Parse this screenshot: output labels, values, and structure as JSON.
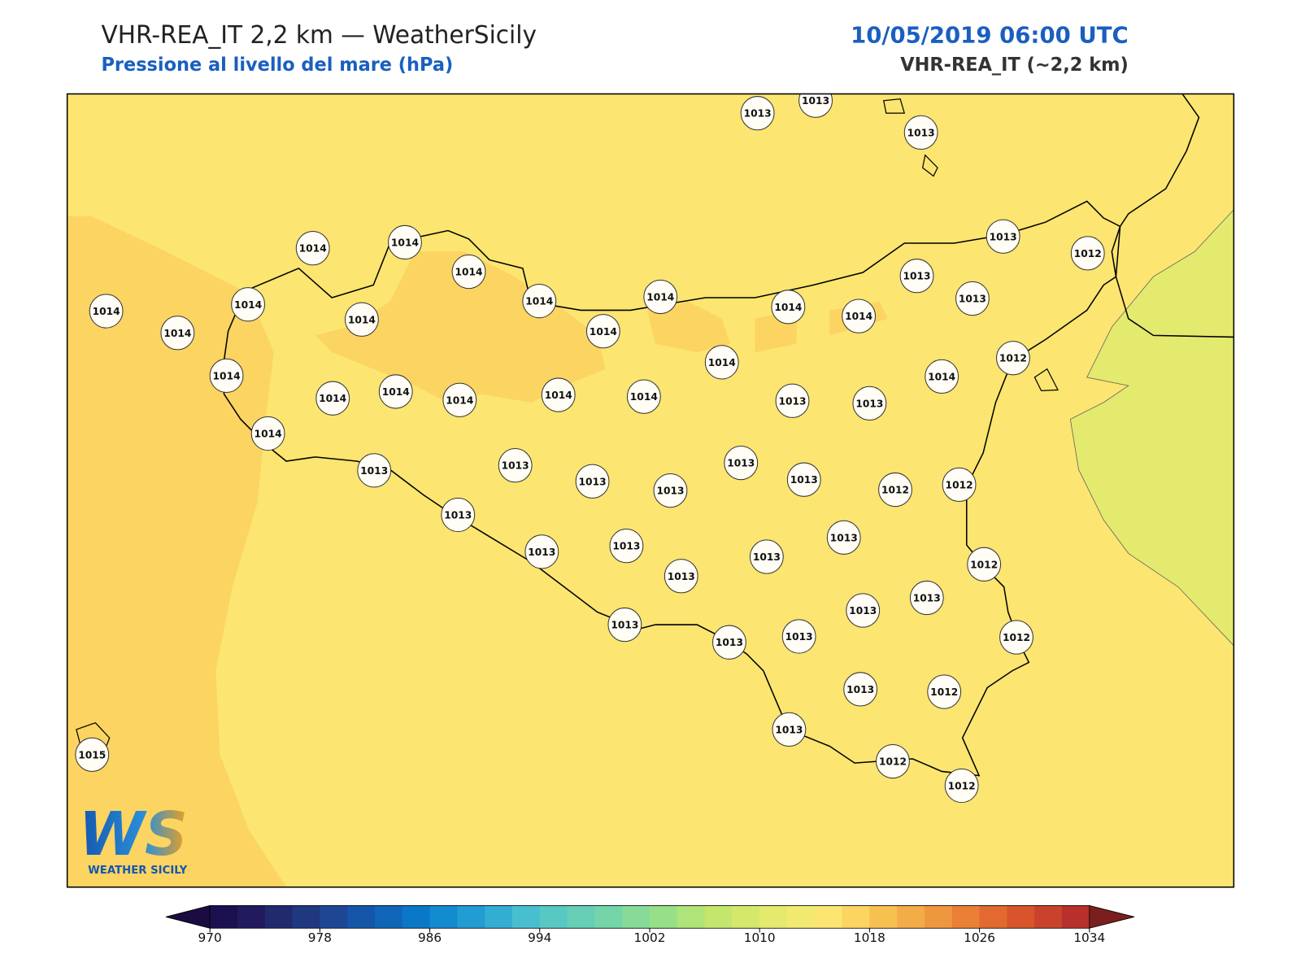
{
  "header": {
    "title": "VHR-REA_IT 2,2 km — WeatherSicily",
    "subtitle": "Pressione al livello del mare (hPa)",
    "datetime": "10/05/2019 06:00 UTC",
    "model": "VHR-REA_IT (~2,2 km)"
  },
  "stations": [
    1013,
    1013,
    1013,
    1014,
    1014,
    1014,
    1014,
    1014,
    1014,
    1014,
    1014,
    1014,
    1014,
    1014,
    1014,
    1013,
    1013,
    1013,
    1012,
    1012,
    1014,
    1014,
    1014,
    1014,
    1014,
    1014,
    1014,
    1013,
    1013,
    1014,
    1014,
    1013,
    1013,
    1013,
    1013,
    1013,
    1013,
    1012,
    1012,
    1013,
    1013,
    1013,
    1013,
    1013,
    1013,
    1012,
    1013,
    1013,
    1013,
    1013,
    1013,
    1012,
    1013,
    1012,
    1013,
    1012,
    1012,
    1015
  ],
  "colorbar": {
    "levels": [
      970,
      972,
      974,
      976,
      978,
      980,
      982,
      984,
      986,
      988,
      990,
      992,
      994,
      996,
      998,
      1000,
      1002,
      1004,
      1006,
      1008,
      1010,
      1012,
      1014,
      1016,
      1018,
      1020,
      1022,
      1024,
      1026,
      1028,
      1030,
      1032,
      1034
    ],
    "colors": [
      "#1c1050",
      "#211a5e",
      "#222a6e",
      "#203880",
      "#1d4795",
      "#1656a8",
      "#0f66b8",
      "#0a78c6",
      "#138bcf",
      "#229cd2",
      "#34add2",
      "#48bfcf",
      "#58c8c4",
      "#66cfb6",
      "#74d6a8",
      "#86db98",
      "#98e087",
      "#afe478",
      "#c4e66d",
      "#d6e86c",
      "#e4ea6e",
      "#f2ea70",
      "#fce570",
      "#fbd461",
      "#f7c152",
      "#f3ac47",
      "#ef973e",
      "#ea8036",
      "#e2692f",
      "#d8552c",
      "#c9432c",
      "#b8302c"
    ],
    "under": "#1a0c40",
    "over": "#7a1e1e",
    "ticks": [
      970,
      978,
      986,
      994,
      1002,
      1010,
      1018,
      1026,
      1034
    ]
  },
  "logo": {
    "mark": "WS",
    "name": "WEATHER SICILY"
  }
}
